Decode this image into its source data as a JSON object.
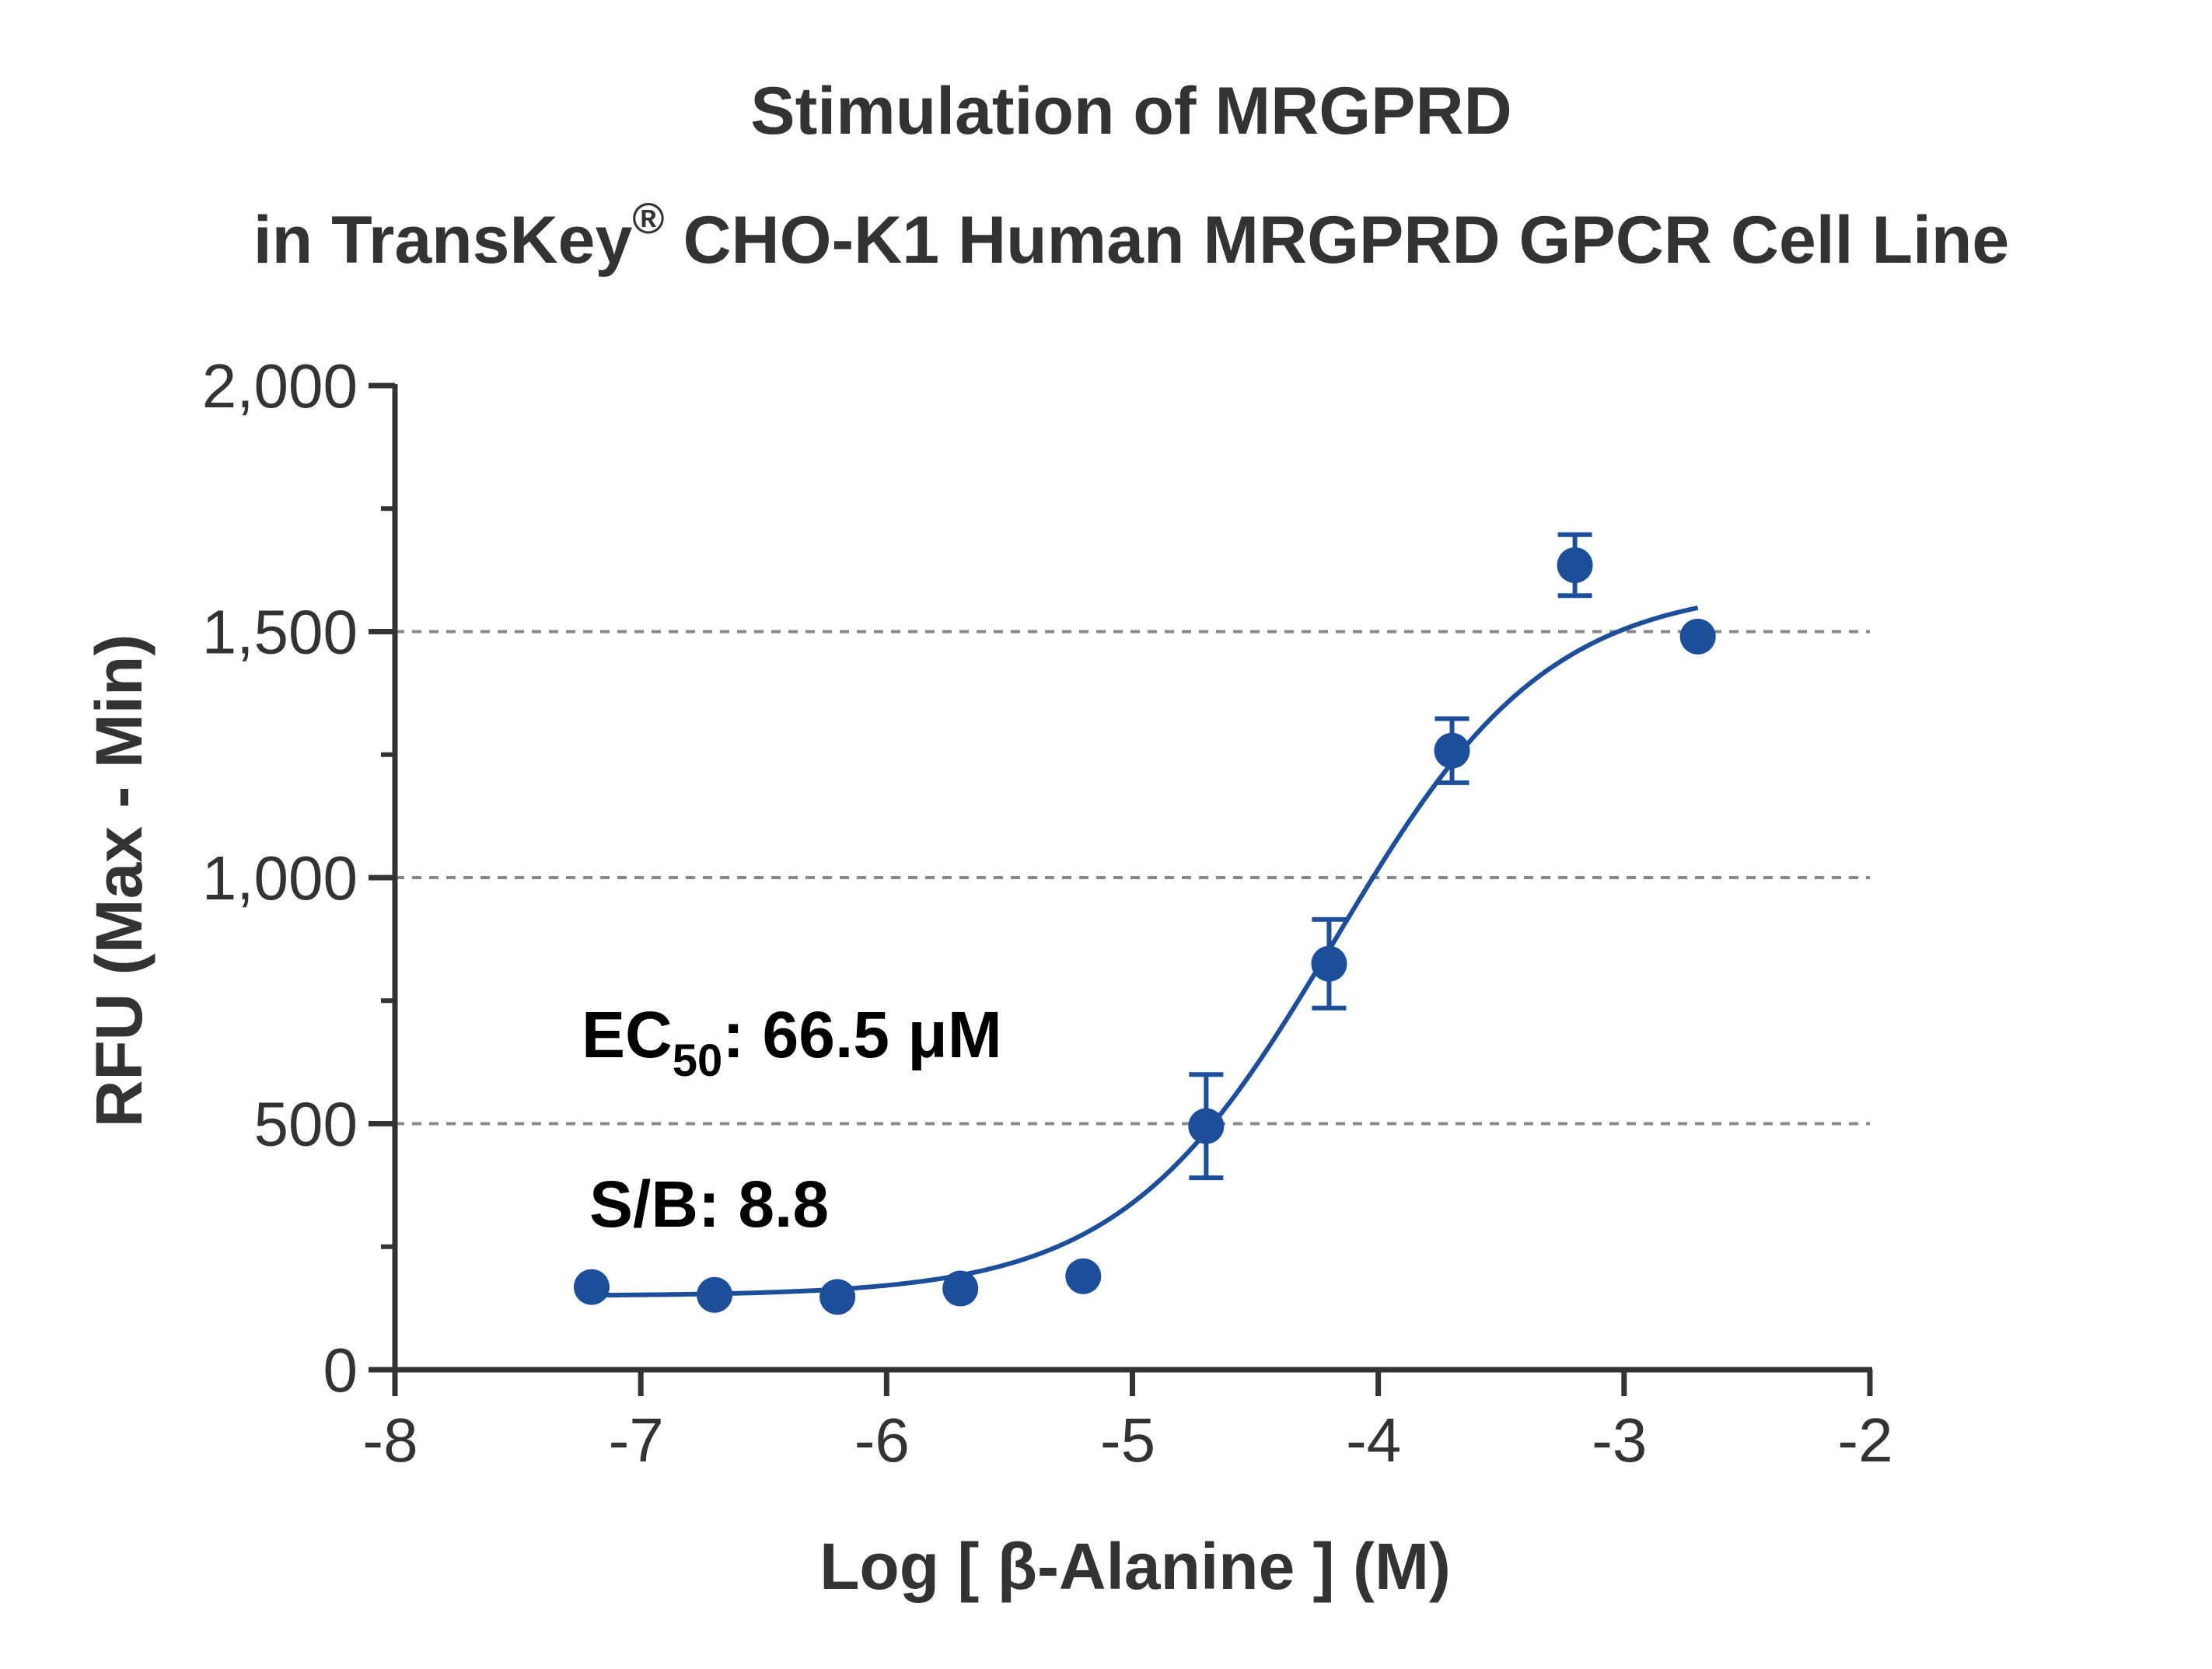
{
  "chart_data": {
    "type": "scatter",
    "title_line1": "Stimulation of  MRGPRD",
    "title_line2_prefix": "in TransKey",
    "title_registered_mark": "®",
    "title_line2_suffix": " CHO-K1 Human MRGPRD GPCR Cell Line",
    "xlabel": "Log [ β-Alanine ]  (M)",
    "ylabel": "RFU (Max - Min)",
    "xlim": [
      -8,
      -2
    ],
    "ylim": [
      0,
      2000
    ],
    "x_ticks": [
      -8,
      -7,
      -6,
      -5,
      -4,
      -3,
      -2
    ],
    "x_tick_labels": [
      "-8",
      "-7",
      "-6",
      "-5",
      "-4",
      "-3",
      "-2"
    ],
    "y_ticks": [
      0,
      500,
      1000,
      1500,
      2000
    ],
    "y_tick_labels": [
      "0",
      "500",
      "1,000",
      "1,500",
      "2,000"
    ],
    "y_minor_ticks": [
      250,
      750,
      1250,
      1750
    ],
    "grid": {
      "horizontal_dashed_at": [
        500,
        1000,
        1500
      ]
    },
    "colors": {
      "series": "#1c4e9a",
      "axis": "#333333",
      "grid": "#888888"
    },
    "series": [
      {
        "x": [
          -7.2,
          -6.7,
          -6.2,
          -5.7,
          -5.2,
          -4.7,
          -4.2,
          -3.7,
          -3.2,
          -2.7
        ],
        "y": [
          168,
          152,
          148,
          165,
          190,
          495,
          825,
          1258,
          1635,
          1490
        ],
        "error": [
          0,
          0,
          0,
          0,
          0,
          105,
          90,
          65,
          62,
          0
        ]
      }
    ],
    "fit_curve": {
      "model": "4PL",
      "bottom": 150,
      "top": 1595,
      "log_ec50": -4.177,
      "hill_slope": 1.0,
      "x_range": [
        -7.2,
        -2.7
      ]
    },
    "annotations": {
      "ec50_main": "EC",
      "ec50_sub": "50",
      "ec50_value": ": 66.5 μM",
      "sb": "S/B: 8.8"
    }
  }
}
